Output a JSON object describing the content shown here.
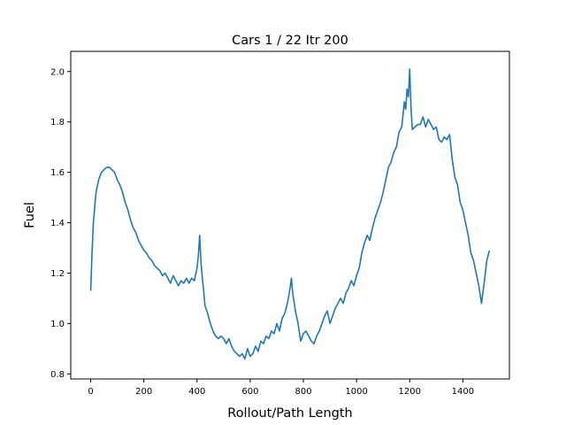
{
  "chart_data": {
    "type": "line",
    "title": "Cars 1 / 22 Itr 200",
    "xlabel": "Rollout/Path Length",
    "ylabel": "Fuel",
    "xlim": [
      -75,
      1575
    ],
    "ylim": [
      0.78,
      2.08
    ],
    "xticks": [
      0,
      200,
      400,
      600,
      800,
      1000,
      1200,
      1400
    ],
    "yticks": [
      0.8,
      1.0,
      1.2,
      1.4,
      1.6,
      1.8,
      2.0
    ],
    "ytick_labels": [
      "0.8",
      "1.0",
      "1.2",
      "1.4",
      "1.6",
      "1.8",
      "2.0"
    ],
    "grid": false,
    "line_color": "#1f77b4",
    "series": [
      {
        "x": [
          0,
          5,
          10,
          20,
          30,
          40,
          50,
          60,
          70,
          80,
          90,
          100,
          110,
          120,
          130,
          140,
          150,
          160,
          170,
          180,
          190,
          200,
          210,
          220,
          230,
          240,
          250,
          260,
          270,
          280,
          290,
          300,
          310,
          320,
          330,
          340,
          350,
          360,
          370,
          380,
          390,
          400,
          405,
          410,
          415,
          420,
          425,
          430,
          440,
          450,
          460,
          470,
          480,
          490,
          500,
          510,
          520,
          530,
          540,
          550,
          560,
          570,
          580,
          590,
          600,
          610,
          620,
          630,
          640,
          650,
          660,
          670,
          680,
          690,
          700,
          710,
          720,
          730,
          740,
          750,
          755,
          760,
          770,
          780,
          790,
          800,
          810,
          820,
          830,
          840,
          850,
          860,
          870,
          880,
          890,
          900,
          910,
          920,
          930,
          940,
          950,
          960,
          970,
          980,
          990,
          1000,
          1010,
          1020,
          1030,
          1040,
          1050,
          1060,
          1070,
          1080,
          1090,
          1100,
          1110,
          1120,
          1130,
          1140,
          1150,
          1160,
          1170,
          1180,
          1185,
          1190,
          1195,
          1200,
          1205,
          1210,
          1220,
          1230,
          1240,
          1250,
          1260,
          1270,
          1280,
          1290,
          1300,
          1310,
          1320,
          1330,
          1340,
          1350,
          1360,
          1370,
          1380,
          1390,
          1400,
          1410,
          1420,
          1430,
          1440,
          1450,
          1460,
          1470,
          1480,
          1490,
          1500
        ],
        "y": [
          1.13,
          1.28,
          1.4,
          1.52,
          1.57,
          1.6,
          1.61,
          1.62,
          1.62,
          1.61,
          1.6,
          1.57,
          1.55,
          1.52,
          1.48,
          1.45,
          1.41,
          1.38,
          1.36,
          1.33,
          1.31,
          1.29,
          1.28,
          1.26,
          1.25,
          1.23,
          1.22,
          1.21,
          1.19,
          1.2,
          1.18,
          1.16,
          1.19,
          1.17,
          1.15,
          1.17,
          1.16,
          1.18,
          1.16,
          1.18,
          1.17,
          1.22,
          1.27,
          1.35,
          1.24,
          1.18,
          1.13,
          1.07,
          1.04,
          1.0,
          0.97,
          0.95,
          0.94,
          0.95,
          0.94,
          0.92,
          0.94,
          0.91,
          0.89,
          0.88,
          0.87,
          0.88,
          0.86,
          0.9,
          0.87,
          0.88,
          0.91,
          0.89,
          0.93,
          0.92,
          0.95,
          0.94,
          0.97,
          0.96,
          1.0,
          0.97,
          1.02,
          1.04,
          1.08,
          1.14,
          1.18,
          1.12,
          1.05,
          1.0,
          0.93,
          0.96,
          0.97,
          0.95,
          0.93,
          0.92,
          0.95,
          0.97,
          1.0,
          1.03,
          1.05,
          1.0,
          1.03,
          1.06,
          1.08,
          1.1,
          1.08,
          1.12,
          1.14,
          1.17,
          1.15,
          1.19,
          1.22,
          1.28,
          1.32,
          1.35,
          1.33,
          1.38,
          1.42,
          1.45,
          1.48,
          1.52,
          1.57,
          1.62,
          1.64,
          1.68,
          1.7,
          1.76,
          1.78,
          1.88,
          1.85,
          1.93,
          1.9,
          2.01,
          1.85,
          1.77,
          1.78,
          1.79,
          1.79,
          1.82,
          1.78,
          1.81,
          1.79,
          1.77,
          1.78,
          1.73,
          1.72,
          1.74,
          1.73,
          1.75,
          1.65,
          1.58,
          1.55,
          1.48,
          1.45,
          1.4,
          1.35,
          1.28,
          1.25,
          1.2,
          1.15,
          1.08,
          1.16,
          1.25,
          1.29
        ]
      }
    ]
  }
}
